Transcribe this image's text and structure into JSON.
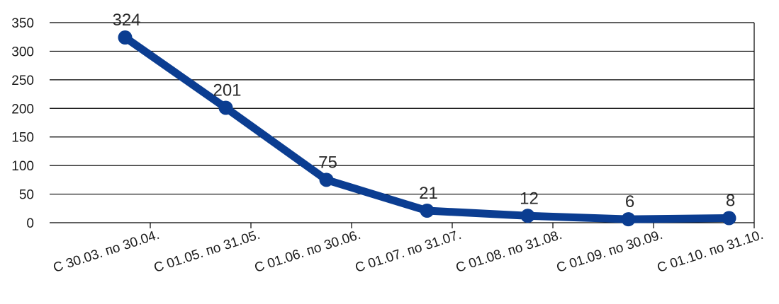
{
  "chart_data": {
    "type": "line",
    "categories": [
      "С 30.03. по 30.04.",
      "С 01.05. по 31.05.",
      "С 01.06. по 30.06.",
      "С 01.07. по 31.07.",
      "С 01.08. по 31.08.",
      "С 01.09. по 30.09.",
      "С 01.10. по 31.10."
    ],
    "series": [
      {
        "values": [
          324,
          201,
          75,
          21,
          12,
          6,
          8
        ]
      }
    ],
    "data_labels": [
      "324",
      "201",
      "75",
      "21",
      "12",
      "6",
      "8"
    ],
    "y_ticks": [
      0,
      50,
      100,
      150,
      200,
      250,
      300,
      350
    ],
    "ylim": [
      0,
      350
    ],
    "grid": "horizontal",
    "legend": "none",
    "line_color": "#0b3d91",
    "grid_color": "#000000"
  }
}
